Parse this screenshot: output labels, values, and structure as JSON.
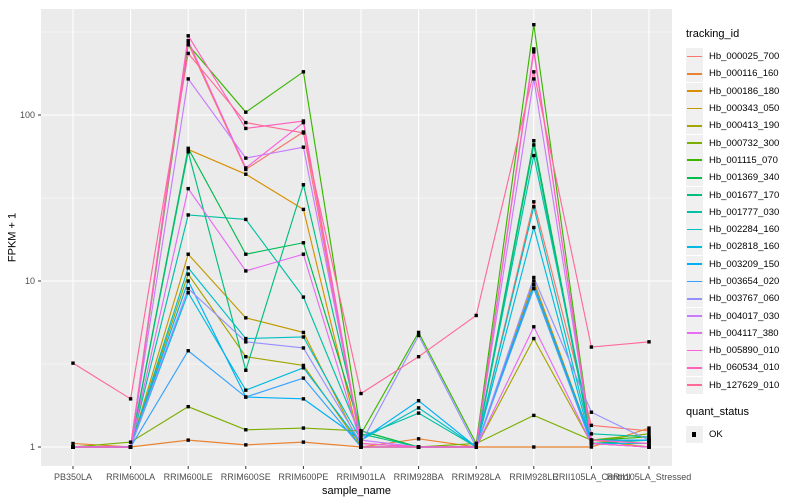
{
  "chart_data": {
    "type": "line",
    "title": "",
    "xlabel": "sample_name",
    "ylabel": "FPKM + 1",
    "y_scale": "log10",
    "grid": true,
    "legend_position": "right",
    "y_ticks": [
      "1",
      "10",
      "100"
    ],
    "y_tick_values": [
      1,
      10,
      100
    ],
    "y_minor_tick_values": [
      3.162,
      31.62,
      316.2
    ],
    "ylim": [
      0.9,
      450
    ],
    "categories": [
      "PB350LA",
      "RRIM600LA",
      "RRIM600LE",
      "RRIM600SE",
      "RRIM600PE",
      "RRIM901LA",
      "RRIM928BA",
      "RRIM928LA",
      "RRIM928LE",
      "RRII105LA_Control",
      "RRII105LA_Stressed"
    ],
    "series": [
      {
        "name": "Hb_000025_700",
        "color": "#F8766D",
        "values": [
          1.0,
          1.0,
          270,
          47,
          79,
          1.0,
          1.0,
          1.0,
          30,
          1.35,
          1.25
        ]
      },
      {
        "name": "Hb_000116_160",
        "color": "#EA8331",
        "values": [
          1.05,
          1.0,
          1.1,
          1.03,
          1.07,
          1.0,
          1.12,
          1.0,
          1.0,
          1.0,
          1.3
        ]
      },
      {
        "name": "Hb_000186_180",
        "color": "#D89000",
        "values": [
          1.0,
          1.0,
          62,
          44,
          27,
          1.0,
          1.0,
          1.0,
          10,
          1.1,
          1.0
        ]
      },
      {
        "name": "Hb_000343_050",
        "color": "#C09B00",
        "values": [
          1.0,
          1.0,
          14.5,
          6.0,
          4.9,
          1.0,
          1.0,
          1.0,
          9.5,
          1.05,
          1.0
        ]
      },
      {
        "name": "Hb_000413_190",
        "color": "#A3A500",
        "values": [
          1.0,
          1.0,
          11,
          3.5,
          3.1,
          1.0,
          1.0,
          1.0,
          4.5,
          1.05,
          1.0
        ]
      },
      {
        "name": "Hb_000732_300",
        "color": "#7CAE00",
        "values": [
          1.0,
          1.07,
          1.75,
          1.27,
          1.3,
          1.25,
          1.0,
          1.05,
          1.55,
          1.1,
          1.2
        ]
      },
      {
        "name": "Hb_001115_070",
        "color": "#39B600",
        "values": [
          1.0,
          1.0,
          265,
          104,
          182,
          1.2,
          4.9,
          1.05,
          350,
          1.1,
          1.15
        ]
      },
      {
        "name": "Hb_001369_340",
        "color": "#00BB4E",
        "values": [
          1.0,
          1.0,
          63,
          14.5,
          17,
          1.25,
          1.0,
          1.0,
          70,
          1.1,
          1.1
        ]
      },
      {
        "name": "Hb_001677_170",
        "color": "#00BF7D",
        "values": [
          1.0,
          1.0,
          60,
          2.9,
          38,
          1.2,
          1.0,
          1.0,
          66,
          1.05,
          1.1
        ]
      },
      {
        "name": "Hb_001777_030",
        "color": "#00C1A3",
        "values": [
          1.0,
          1.0,
          25,
          23.5,
          8.0,
          1.15,
          1.6,
          1.0,
          57,
          1.2,
          1.15
        ]
      },
      {
        "name": "Hb_002284_160",
        "color": "#00BFC4",
        "values": [
          1.0,
          1.0,
          12,
          4.5,
          4.6,
          1.1,
          1.72,
          1.0,
          28,
          1.1,
          1.1
        ]
      },
      {
        "name": "Hb_002818_160",
        "color": "#00BAE0",
        "values": [
          1.0,
          1.0,
          8.5,
          2.2,
          3.0,
          1.05,
          1.0,
          1.0,
          21,
          1.05,
          1.05
        ]
      },
      {
        "name": "Hb_003209_150",
        "color": "#00B0F6",
        "values": [
          1.0,
          1.0,
          10,
          2.0,
          1.95,
          1.1,
          1.9,
          1.0,
          9.5,
          1.1,
          1.1
        ]
      },
      {
        "name": "Hb_003654_020",
        "color": "#35A2FF",
        "values": [
          1.0,
          1.0,
          3.8,
          2.0,
          2.6,
          1.0,
          1.0,
          1.0,
          9.0,
          1.05,
          1.0
        ]
      },
      {
        "name": "Hb_003767_060",
        "color": "#9590FF",
        "values": [
          1.0,
          1.0,
          9.0,
          4.3,
          3.95,
          1.05,
          4.7,
          1.0,
          10.5,
          1.62,
          1.1
        ]
      },
      {
        "name": "Hb_004017_030",
        "color": "#C77CFF",
        "values": [
          1.0,
          1.0,
          165,
          55,
          64,
          1.1,
          1.0,
          1.0,
          165,
          1.1,
          1.05
        ]
      },
      {
        "name": "Hb_004117_380",
        "color": "#E76BF3",
        "values": [
          1.0,
          1.0,
          36,
          11.5,
          14.5,
          1.05,
          1.0,
          1.0,
          5.3,
          1.05,
          1.0
        ]
      },
      {
        "name": "Hb_005890_010",
        "color": "#FA62DB",
        "values": [
          1.0,
          1.0,
          280,
          48,
          90,
          1.0,
          1.0,
          1.0,
          250,
          1.05,
          1.0
        ]
      },
      {
        "name": "Hb_060534_010",
        "color": "#FF62BC",
        "values": [
          1.0,
          1.0,
          300,
          83,
          92,
          1.05,
          1.0,
          1.0,
          240,
          1.1,
          1.05
        ]
      },
      {
        "name": "Hb_127629_010",
        "color": "#FF6A98",
        "values": [
          3.2,
          1.95,
          235,
          90,
          78,
          2.1,
          3.5,
          6.2,
          182,
          4.0,
          4.3
        ]
      }
    ],
    "legend": {
      "tracking_title": "tracking_id",
      "quant_title": "quant_status",
      "quant_items": [
        {
          "label": "OK",
          "marker": "black-square"
        }
      ]
    },
    "colors": {
      "panel_bg": "#EBEBEB",
      "grid": "#FFFFFF",
      "tick_label": "#4D4D4D",
      "tick_mark": "#333333",
      "point": "#000000",
      "axis_title": "#000000"
    }
  }
}
